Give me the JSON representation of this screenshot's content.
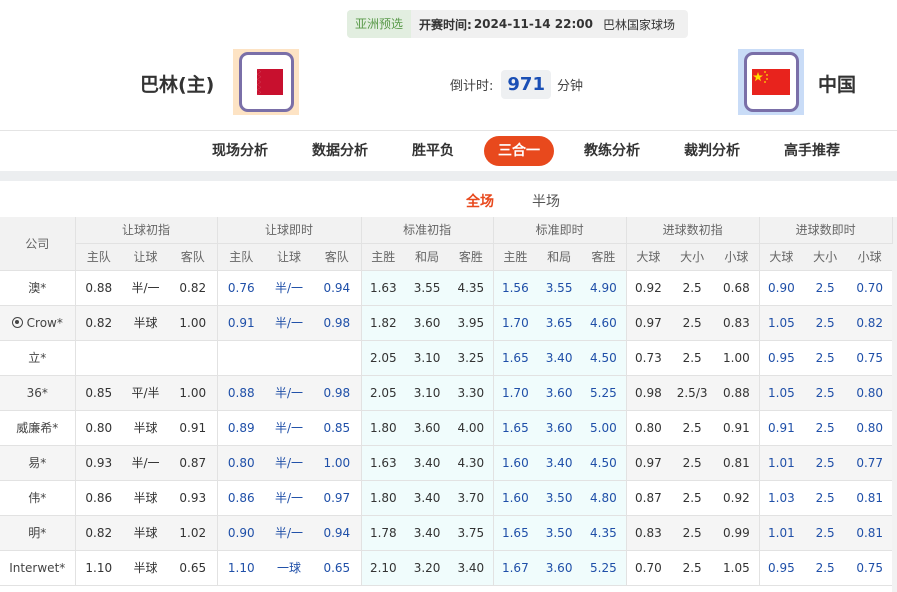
{
  "match": {
    "league": "亚洲预选",
    "kickoff_label": "开赛时间:",
    "kickoff": "2024-11-14 22:00",
    "venue": "巴林国家球场",
    "home": "巴林(主)",
    "away": "中国",
    "countdown_label": "倒计时:",
    "countdown": "971",
    "countdown_unit": "分钟",
    "home_flag": "bahrain-flag",
    "away_flag": "china-flag"
  },
  "nav": [
    "现场分析",
    "数据分析",
    "胜平负",
    "三合一",
    "教练分析",
    "裁判分析",
    "高手推荐"
  ],
  "nav_active": "三合一",
  "tabs": [
    "全场",
    "半场"
  ],
  "tab_active": "全场",
  "colors": {
    "accent": "#e8491d",
    "live_value": "#1f4fa8",
    "std_bg": "#f0fcfc"
  },
  "table": {
    "company_header": "公司",
    "groups": [
      "让球初指",
      "让球即时",
      "标准初指",
      "标准即时",
      "进球数初指",
      "进球数即时"
    ],
    "subheaders": [
      "主队",
      "让球",
      "客队",
      "主队",
      "让球",
      "客队",
      "主胜",
      "和局",
      "客胜",
      "主胜",
      "和局",
      "客胜",
      "大球",
      "大小",
      "小球",
      "大球",
      "大小",
      "小球"
    ],
    "rows": [
      {
        "company": "澳*",
        "v": [
          "0.88",
          "半/一",
          "0.82",
          "0.76",
          "半/一",
          "0.94",
          "1.63",
          "3.55",
          "4.35",
          "1.56",
          "3.55",
          "4.90",
          "0.92",
          "2.5",
          "0.68",
          "0.90",
          "2.5",
          "0.70"
        ]
      },
      {
        "company": "Crow*",
        "icon": "soccer-ball-icon",
        "v": [
          "0.82",
          "半球",
          "1.00",
          "0.91",
          "半/一",
          "0.98",
          "1.82",
          "3.60",
          "3.95",
          "1.70",
          "3.65",
          "4.60",
          "0.97",
          "2.5",
          "0.83",
          "1.05",
          "2.5",
          "0.82"
        ]
      },
      {
        "company": "立*",
        "v": [
          "",
          "",
          "",
          "",
          "",
          "",
          "2.05",
          "3.10",
          "3.25",
          "1.65",
          "3.40",
          "4.50",
          "0.73",
          "2.5",
          "1.00",
          "0.95",
          "2.5",
          "0.75"
        ]
      },
      {
        "company": "36*",
        "v": [
          "0.85",
          "平/半",
          "1.00",
          "0.88",
          "半/一",
          "0.98",
          "2.05",
          "3.10",
          "3.30",
          "1.70",
          "3.60",
          "5.25",
          "0.98",
          "2.5/3",
          "0.88",
          "1.05",
          "2.5",
          "0.80"
        ]
      },
      {
        "company": "威廉希*",
        "v": [
          "0.80",
          "半球",
          "0.91",
          "0.89",
          "半/一",
          "0.85",
          "1.80",
          "3.60",
          "4.00",
          "1.65",
          "3.60",
          "5.00",
          "0.80",
          "2.5",
          "0.91",
          "0.91",
          "2.5",
          "0.80"
        ]
      },
      {
        "company": "易*",
        "v": [
          "0.93",
          "半/一",
          "0.87",
          "0.80",
          "半/一",
          "1.00",
          "1.63",
          "3.40",
          "4.30",
          "1.60",
          "3.40",
          "4.50",
          "0.97",
          "2.5",
          "0.81",
          "1.01",
          "2.5",
          "0.77"
        ]
      },
      {
        "company": "伟*",
        "v": [
          "0.86",
          "半球",
          "0.93",
          "0.86",
          "半/一",
          "0.97",
          "1.80",
          "3.40",
          "3.70",
          "1.60",
          "3.50",
          "4.80",
          "0.87",
          "2.5",
          "0.92",
          "1.03",
          "2.5",
          "0.81"
        ]
      },
      {
        "company": "明*",
        "v": [
          "0.82",
          "半球",
          "1.02",
          "0.90",
          "半/一",
          "0.94",
          "1.78",
          "3.40",
          "3.75",
          "1.65",
          "3.50",
          "4.35",
          "0.83",
          "2.5",
          "0.99",
          "1.01",
          "2.5",
          "0.81"
        ]
      },
      {
        "company": "Interwet*",
        "v": [
          "1.10",
          "半球",
          "0.65",
          "1.10",
          "一球",
          "0.65",
          "2.10",
          "3.20",
          "3.40",
          "1.67",
          "3.60",
          "5.25",
          "0.70",
          "2.5",
          "1.05",
          "0.95",
          "2.5",
          "0.75"
        ]
      }
    ]
  }
}
